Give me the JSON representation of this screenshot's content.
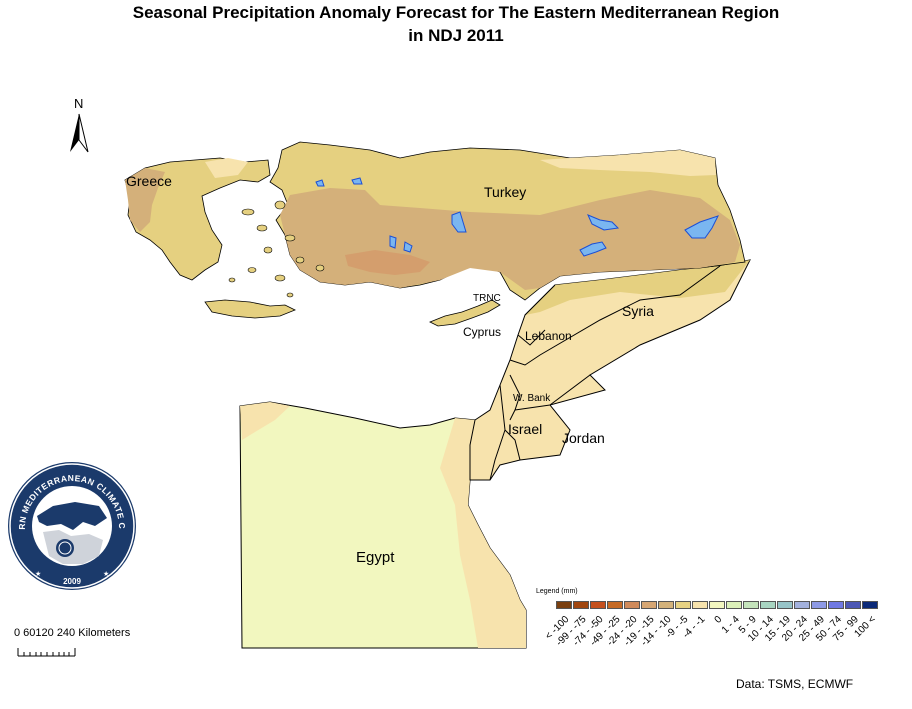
{
  "title": {
    "line1": "Seasonal Precipitation Anomaly Forecast for  The Eastern Mediterranean Region",
    "line2": "in NDJ 2011"
  },
  "north_arrow": {
    "label": "N",
    "icon": "north-arrow-icon"
  },
  "regions": {
    "greece": "Greece",
    "turkey": "Turkey",
    "trnc": "TRNC",
    "cyprus": "Cyprus",
    "syria": "Syria",
    "lebanon": "Lebanon",
    "wbank": "W. Bank",
    "israel": "Israel",
    "jordan": "Jordan",
    "egypt": "Egypt"
  },
  "logo": {
    "text": "EASTERN MEDITERRANEAN CLIMATE CENTRE",
    "year": "2009"
  },
  "scale": {
    "label": "0 60120  240 Kilometers"
  },
  "legend": {
    "title": "Legend (mm)",
    "classes": [
      {
        "label": "< -100",
        "color": "#7a3f10"
      },
      {
        "label": "-99 - -75",
        "color": "#a1460f"
      },
      {
        "label": "-74 - -50",
        "color": "#c4501e"
      },
      {
        "label": "-49 - -25",
        "color": "#c66a25"
      },
      {
        "label": "-24 - -20",
        "color": "#cf8a5b"
      },
      {
        "label": "-19 - -15",
        "color": "#d6a673"
      },
      {
        "label": "-14 - -10",
        "color": "#d3b27b"
      },
      {
        "label": "-9 - -5",
        "color": "#e7d283"
      },
      {
        "label": "-4 - -1",
        "color": "#f7e3ad"
      },
      {
        "label": "0",
        "color": "#f3f7c0"
      },
      {
        "label": "1 - 4",
        "color": "#dcf0b9"
      },
      {
        "label": "5 - 9",
        "color": "#c4e3bb"
      },
      {
        "label": "10 - 14",
        "color": "#a8d4c1"
      },
      {
        "label": "15 - 19",
        "color": "#97c4c8"
      },
      {
        "label": "20 - 24",
        "color": "#a3b1dd"
      },
      {
        "label": "25 - 49",
        "color": "#8e9ae5"
      },
      {
        "label": "50 - 74",
        "color": "#6f78e2"
      },
      {
        "label": "75 - 99",
        "color": "#4c57b5"
      },
      {
        "label": "100 <",
        "color": "#0c2a78"
      }
    ]
  },
  "source": "Data:  TSMS, ECMWF",
  "colors": {
    "dry_moderate": "#d4b07a",
    "dry_light": "#e5d080",
    "near_normal": "#f7e3ad",
    "normal": "#f2f7bf",
    "dry_strong": "#d49b6b",
    "lakes": "#7ab6f0"
  }
}
